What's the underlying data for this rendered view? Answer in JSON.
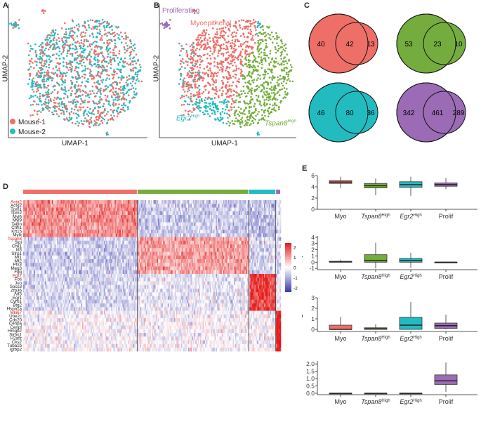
{
  "panel_labels": {
    "a": "A",
    "b": "B",
    "c": "C",
    "d": "D",
    "e": "E"
  },
  "umap": {
    "xlabel": "UMAP-1",
    "ylabel": "UMAP-2",
    "legend": [
      {
        "name": "Mouse-1",
        "color": "#ee6e68"
      },
      {
        "name": "Mouse-2",
        "color": "#22bcc0"
      }
    ]
  },
  "clusters": {
    "proliferating": {
      "label": "Proliferating",
      "color": "#9b6bb5"
    },
    "myoepithelial": {
      "label": "Myoepithelial",
      "color": "#ee6e68"
    },
    "tspan8": {
      "gene": "Tspan8",
      "sup": "High",
      "color": "#74ad3e"
    },
    "egr2": {
      "gene": "Egr2",
      "sup": "High",
      "color": "#22bcc0"
    }
  },
  "venn": [
    {
      "left": "40",
      "mid": "42",
      "right": "13",
      "color": "#ee6e68"
    },
    {
      "left": "53",
      "mid": "23",
      "right": "10",
      "color": "#74ad3e"
    },
    {
      "left": "46",
      "mid": "80",
      "right": "36",
      "color": "#22bcc0"
    },
    {
      "left": "342",
      "mid": "461",
      "right": "289",
      "color": "#9b6bb5"
    }
  ],
  "heatmap": {
    "groups": [
      {
        "name": "Myo",
        "color": "#ee6e68",
        "count": 190
      },
      {
        "name": "Tspan8",
        "color": "#74ad3e",
        "count": 185
      },
      {
        "name": "Egr2",
        "color": "#22bcc0",
        "count": 45
      },
      {
        "name": "Prolif",
        "color": "#9b6bb5",
        "count": 8
      }
    ],
    "genes": [
      "Acta2",
      "Actg2",
      "Tpm1",
      "Tpm2",
      "Myl6",
      "Myl9",
      "Tagln",
      "Cnn1",
      "Krt15",
      "Mylk",
      "Tspan8",
      "Slpi",
      "Chil1",
      "Id3",
      "Sfrp1",
      "Mt1",
      "Mt2",
      "Ptx3",
      "Meg3",
      "Fgg",
      "Egr2",
      "Fos",
      "Jun",
      "Socs3",
      "Zfp36",
      "Atf3",
      "Egr1",
      "Cyr61",
      "Btg2",
      "Hspa1a",
      "Mki67",
      "Ube2c",
      "Cdc20",
      "Cenpa",
      "Cenpf",
      "Hmgb2",
      "Stmn1",
      "H2afz",
      "Cks2",
      "Tuba1b",
      "Igfbp2"
    ],
    "highlighted": [
      "Acta2",
      "Tspan8",
      "Egr2",
      "Mki67"
    ],
    "scale": {
      "ticks": [
        "2",
        "1",
        "0",
        "-1",
        "-2"
      ]
    }
  },
  "boxplots": {
    "categories": [
      "Myo",
      "Tspan8",
      "Egr2",
      "Prolif"
    ],
    "sup": "High",
    "colors": [
      "#ee6e68",
      "#74ad3e",
      "#22bcc0",
      "#9b6bb5"
    ],
    "panels": [
      {
        "gene": "Acta2",
        "ymin": 0,
        "ymax": 6,
        "ticks": [
          "0",
          "2",
          "4",
          "6"
        ],
        "tickvals": [
          0,
          2,
          4,
          6
        ],
        "boxes": [
          [
            3.8,
            4.6,
            4.85,
            5.1,
            5.8
          ],
          [
            2.5,
            3.8,
            4.2,
            4.6,
            5.5
          ],
          [
            2.4,
            3.9,
            4.4,
            4.9,
            5.8
          ],
          [
            3.6,
            4.1,
            4.4,
            4.7,
            5.6
          ]
        ]
      },
      {
        "gene": "Tspan8",
        "ymin": -1.2,
        "ymax": 4.2,
        "ticks": [
          "-1",
          "0",
          "1",
          "2",
          "3",
          "4"
        ],
        "tickvals": [
          -1,
          0,
          1,
          2,
          3,
          4
        ],
        "boxes": [
          [
            -0.1,
            0.0,
            0.05,
            0.15,
            0.4
          ],
          [
            -1.0,
            0.0,
            0.3,
            1.2,
            3.1
          ],
          [
            -0.9,
            0.0,
            0.3,
            0.6,
            1.5
          ],
          [
            -0.1,
            0.0,
            0.0,
            0.0,
            0.1
          ]
        ]
      },
      {
        "gene": "Egr2",
        "ymin": -0.2,
        "ymax": 3.0,
        "ticks": [
          "0",
          "1",
          "2",
          "3"
        ],
        "tickvals": [
          0,
          1,
          2,
          3
        ],
        "boxes": [
          [
            0,
            0.0,
            0.0,
            0.4,
            1.2
          ],
          [
            0,
            0.0,
            0.05,
            0.15,
            0.5
          ],
          [
            0,
            0.0,
            0.4,
            1.15,
            2.6
          ],
          [
            0,
            0.1,
            0.35,
            0.6,
            1.4
          ]
        ]
      },
      {
        "gene": "Mki67",
        "ymin": -0.1,
        "ymax": 2.2,
        "ticks": [
          "0.0",
          "0.5",
          "1.0",
          "1.5",
          "2.0"
        ],
        "tickvals": [
          0,
          0.5,
          1,
          1.5,
          2
        ],
        "boxes": [
          [
            0,
            0,
            0,
            0,
            0
          ],
          [
            0,
            0,
            0,
            0,
            0
          ],
          [
            0,
            0,
            0,
            0,
            0
          ],
          [
            0.1,
            0.6,
            0.85,
            1.25,
            2.1
          ]
        ]
      }
    ]
  }
}
